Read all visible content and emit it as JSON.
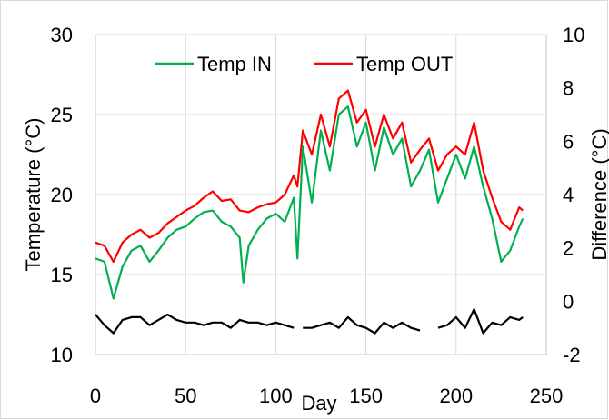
{
  "chart_data": {
    "type": "line",
    "xlabel": "Day",
    "ylabel": "Temperature (°C)",
    "y2label": "Difference (°C)",
    "xlim": [
      0,
      250
    ],
    "ylim": [
      10,
      30
    ],
    "y2lim": [
      -2,
      10
    ],
    "x_ticks": [
      0,
      50,
      100,
      150,
      200,
      250
    ],
    "y_ticks": [
      10,
      15,
      20,
      25,
      30
    ],
    "y2_ticks": [
      -2,
      0,
      2,
      4,
      6,
      8,
      10
    ],
    "grid": true,
    "legend": {
      "placement": "top",
      "entries": [
        "Temp IN",
        "Temp OUT"
      ]
    },
    "colors": {
      "Temp IN": "#00b050",
      "Temp OUT": "#ff0000",
      "Difference": "#000000",
      "grid": "#d9d9d9"
    },
    "series": [
      {
        "name": "Temp OUT",
        "axis": "left",
        "x": [
          0,
          5,
          10,
          15,
          20,
          25,
          30,
          35,
          40,
          45,
          50,
          55,
          60,
          65,
          70,
          75,
          80,
          85,
          90,
          95,
          100,
          105,
          110,
          112,
          115,
          120,
          125,
          130,
          135,
          140,
          145,
          150,
          155,
          160,
          165,
          170,
          175,
          180,
          185,
          190,
          195,
          200,
          205,
          210,
          215,
          220,
          225,
          230,
          235,
          237
        ],
        "y": [
          17.0,
          16.8,
          15.8,
          17.0,
          17.5,
          17.8,
          17.3,
          17.6,
          18.2,
          18.6,
          19.0,
          19.3,
          19.8,
          20.2,
          19.6,
          19.7,
          19.0,
          18.9,
          19.2,
          19.4,
          19.5,
          20.0,
          21.2,
          20.5,
          24.0,
          22.5,
          25.0,
          23.0,
          26.0,
          26.5,
          24.5,
          25.3,
          23.0,
          25.0,
          23.5,
          24.5,
          22.0,
          22.8,
          23.5,
          21.5,
          22.5,
          23.0,
          22.5,
          24.5,
          21.5,
          19.8,
          18.3,
          17.8,
          19.2,
          19.0
        ]
      },
      {
        "name": "Temp IN",
        "axis": "left",
        "x": [
          0,
          5,
          10,
          15,
          20,
          25,
          30,
          35,
          40,
          45,
          50,
          55,
          60,
          65,
          70,
          75,
          80,
          82,
          85,
          90,
          95,
          100,
          105,
          110,
          112,
          115,
          120,
          125,
          130,
          135,
          140,
          145,
          150,
          155,
          160,
          165,
          170,
          175,
          180,
          185,
          190,
          195,
          200,
          205,
          210,
          215,
          220,
          225,
          230,
          235,
          237
        ],
        "y": [
          16.0,
          15.8,
          13.5,
          15.5,
          16.5,
          16.8,
          15.8,
          16.5,
          17.3,
          17.8,
          18.0,
          18.5,
          18.9,
          19.0,
          18.3,
          18.0,
          17.3,
          14.5,
          16.8,
          17.8,
          18.5,
          18.8,
          18.3,
          19.8,
          16.0,
          23.0,
          19.5,
          24.0,
          21.5,
          25.0,
          25.5,
          23.0,
          24.5,
          21.5,
          24.2,
          22.5,
          23.5,
          20.5,
          21.5,
          22.8,
          19.5,
          21.0,
          22.5,
          21.0,
          23.0,
          20.5,
          18.5,
          15.8,
          16.5,
          18.0,
          18.5
        ]
      },
      {
        "name": "Difference",
        "axis": "right",
        "x": [
          0,
          5,
          10,
          15,
          20,
          25,
          30,
          35,
          40,
          45,
          50,
          55,
          60,
          65,
          70,
          75,
          80,
          85,
          90,
          95,
          100,
          105,
          110,
          112,
          115,
          120,
          125,
          130,
          135,
          140,
          145,
          150,
          155,
          160,
          165,
          170,
          175,
          180,
          185,
          190,
          195,
          200,
          205,
          210,
          215,
          220,
          225,
          230,
          235,
          237
        ],
        "y": [
          -0.5,
          -0.9,
          -1.2,
          -0.7,
          -0.6,
          -0.6,
          -0.9,
          -0.7,
          -0.5,
          -0.7,
          -0.8,
          -0.8,
          -0.9,
          -0.8,
          -0.8,
          -1.0,
          -0.7,
          -0.8,
          -0.8,
          -0.9,
          -0.8,
          -0.9,
          -1.0,
          null,
          -1.0,
          -1.0,
          -0.9,
          -0.8,
          -1.0,
          -0.6,
          -0.9,
          -1.0,
          -1.2,
          -0.8,
          -1.0,
          -0.8,
          -1.0,
          -1.1,
          null,
          -1.0,
          -0.9,
          -0.6,
          -1.0,
          -0.3,
          -1.2,
          -0.8,
          -0.9,
          -0.6,
          -0.7,
          -0.6
        ]
      }
    ]
  }
}
